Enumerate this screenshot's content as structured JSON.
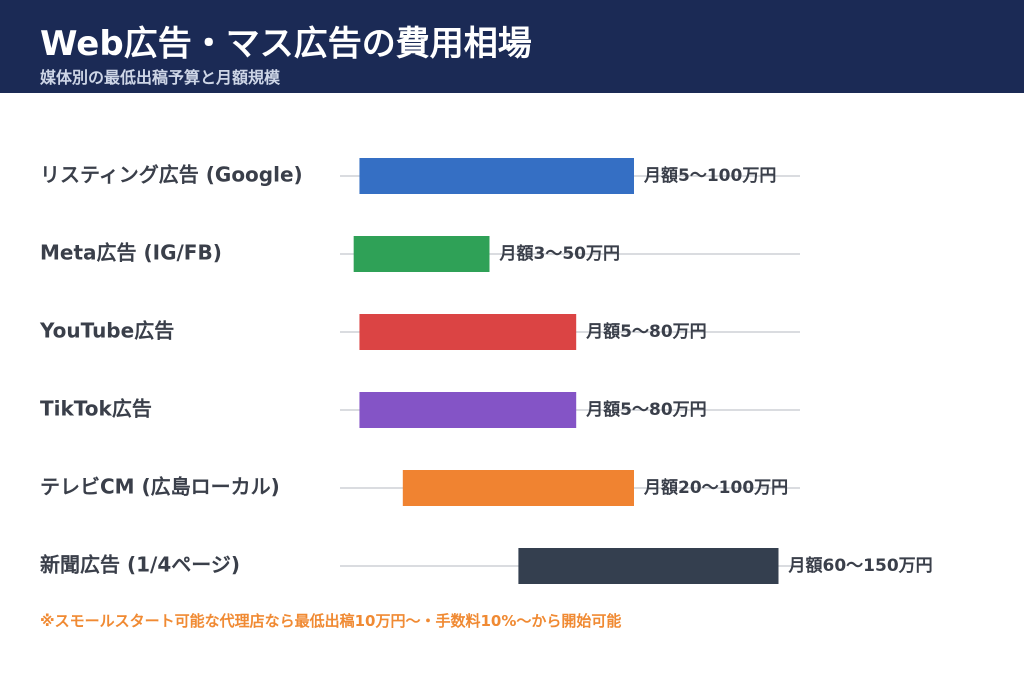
{
  "header": {
    "title": "Web広告・マス広告の費用相場",
    "subtitle": "媒体別の最低出稿予算と月額規模"
  },
  "chart_data": {
    "type": "bar",
    "orientation": "horizontal-range",
    "unit": "万円/月",
    "xlim": [
      0,
      160
    ],
    "grid": false,
    "legend": "none",
    "categories": [
      "リスティング広告 (Google)",
      "Meta広告 (IG/FB)",
      "YouTube広告",
      "TikTok広告",
      "テレビCM (広島ローカル)",
      "新聞広告 (1/4ページ)"
    ],
    "ranges": [
      {
        "min": 5,
        "max": 100,
        "label": "月額5〜100万円",
        "color": "#356fc4"
      },
      {
        "min": 3,
        "max": 50,
        "label": "月額3〜50万円",
        "color": "#2fa157"
      },
      {
        "min": 5,
        "max": 80,
        "label": "月額5〜80万円",
        "color": "#db4444"
      },
      {
        "min": 5,
        "max": 80,
        "label": "月額5〜80万円",
        "color": "#8454c6"
      },
      {
        "min": 20,
        "max": 100,
        "label": "月額20〜100万円",
        "color": "#f08331"
      },
      {
        "min": 60,
        "max": 150,
        "label": "月額60〜150万円",
        "color": "#343f4f"
      }
    ]
  },
  "footnote": "※スモールスタート可能な代理店なら最低出稿10万円〜・手数料10%〜から開始可能",
  "colors": {
    "header_bg": "#1b2a55",
    "label_text": "#3a3f4a",
    "axis_line": "#b5b9c0",
    "footnote": "#f08a33"
  }
}
